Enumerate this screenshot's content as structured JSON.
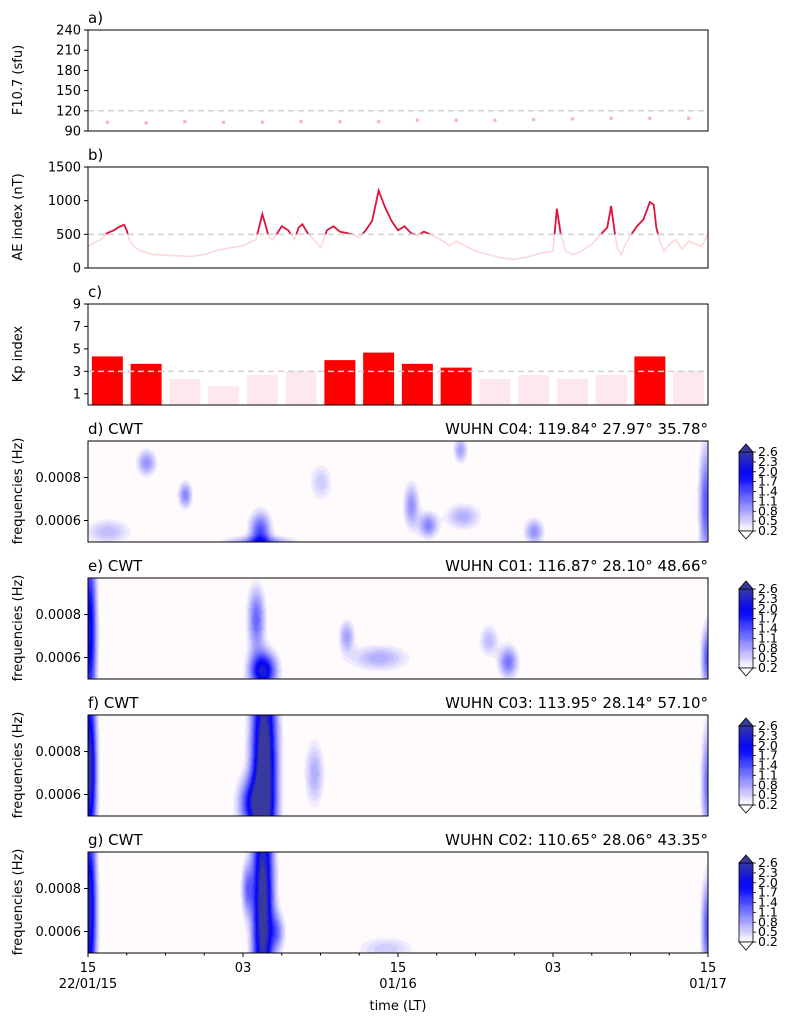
{
  "chart_data": [
    {
      "panel": "a",
      "type": "scatter",
      "title": "a)",
      "ylabel": "F10.7 (sfu)",
      "ylim": [
        90,
        240
      ],
      "yticks": [
        "90",
        "120",
        "150",
        "180",
        "210",
        "240"
      ],
      "threshold": 120,
      "colors": {
        "points": "#f7b6c8",
        "threshold": "#d0d0d0"
      },
      "x_hours": [
        1.5,
        4.5,
        7.5,
        10.5,
        13.5,
        16.5,
        19.5,
        22.5,
        25.5,
        28.5,
        31.5,
        34.5,
        37.5,
        40.5,
        43.5,
        46.5
      ],
      "values": [
        103,
        102,
        104,
        103,
        103,
        104,
        104,
        104,
        106,
        106,
        106,
        107,
        108,
        109,
        109,
        109
      ]
    },
    {
      "panel": "b",
      "type": "line",
      "title": "b)",
      "ylabel": "AE index (nT)",
      "ylim": [
        0,
        1500
      ],
      "yticks": [
        "0",
        "500",
        "1000",
        "1500"
      ],
      "threshold": 500,
      "colors": {
        "below": "#fbd9d9",
        "above": "#dc143c",
        "threshold": "#d0d0d0"
      },
      "x_hours": [
        0,
        0.5,
        1,
        1.5,
        2,
        2.5,
        2.8,
        3,
        3.2,
        3.5,
        4,
        5,
        6,
        7,
        8,
        9,
        10,
        11,
        12,
        13,
        13.5,
        13.8,
        14,
        14.3,
        14.6,
        15,
        15.5,
        16,
        16.3,
        16.6,
        17,
        17.5,
        18,
        18.5,
        19,
        19.5,
        20,
        20.5,
        21,
        21.5,
        22,
        22.5,
        23,
        23.5,
        24,
        24.5,
        25,
        25.5,
        26,
        26.5,
        27,
        27.5,
        28,
        28.5,
        29,
        29.5,
        30,
        31,
        32,
        33,
        34,
        35,
        36,
        36.3,
        36.6,
        37,
        37.5,
        38,
        39,
        39.8,
        40.2,
        40.5,
        40.8,
        41,
        41.3,
        41.6,
        42,
        42.5,
        43,
        43.5,
        43.8,
        44,
        44.3,
        44.6,
        45,
        45.5,
        46,
        46.5,
        47,
        47.5,
        48
      ],
      "values": [
        320,
        380,
        420,
        520,
        560,
        620,
        640,
        560,
        420,
        330,
        260,
        200,
        190,
        180,
        170,
        200,
        260,
        300,
        330,
        420,
        800,
        600,
        460,
        420,
        500,
        620,
        560,
        420,
        600,
        650,
        520,
        420,
        300,
        560,
        620,
        540,
        520,
        500,
        450,
        560,
        700,
        1150,
        900,
        700,
        560,
        620,
        520,
        480,
        540,
        500,
        450,
        400,
        330,
        400,
        350,
        300,
        250,
        200,
        150,
        130,
        160,
        220,
        250,
        880,
        500,
        250,
        200,
        230,
        350,
        520,
        600,
        920,
        500,
        280,
        200,
        350,
        480,
        620,
        720,
        980,
        940,
        600,
        380,
        250,
        350,
        420,
        280,
        400,
        360,
        320,
        500
      ],
      "note_values": "AE values in nT"
    },
    {
      "panel": "c",
      "type": "bar",
      "title": "c)",
      "ylabel": "Kp index",
      "ylim": [
        0,
        9
      ],
      "yticks": [
        "1",
        "3",
        "5",
        "7",
        "9"
      ],
      "threshold": 3,
      "colors": {
        "high": "#ff0000",
        "low": "#fde8ee",
        "threshold": "#d0d0d0"
      },
      "x_hours": [
        1.5,
        4.5,
        7.5,
        10.5,
        13.5,
        16.5,
        19.5,
        22.5,
        25.5,
        28.5,
        31.5,
        34.5,
        37.5,
        40.5,
        43.5,
        46.5
      ],
      "values": [
        4.33,
        3.67,
        2.33,
        1.67,
        2.67,
        3.0,
        4.0,
        4.67,
        3.67,
        3.33,
        2.33,
        2.67,
        2.33,
        2.67,
        4.33,
        3.0
      ]
    },
    {
      "panel": "d",
      "type": "heatmap",
      "title": "d) CWT",
      "station": "WUHN C04: 119.84° 27.97° 35.78°",
      "ylabel": "frequencies (Hz)",
      "yticks": [
        "0.0006",
        "0.0008"
      ],
      "ylim": [
        0.0005,
        0.00097
      ],
      "colorbar_ticks": [
        "0.2",
        "0.5",
        "0.8",
        "1.1",
        "1.4",
        "1.7",
        "2.0",
        "2.3",
        "2.6"
      ],
      "clim": [
        0.2,
        2.6
      ],
      "blobs": [
        {
          "t": 13.3,
          "f": 0.00055,
          "amp": 1.4,
          "st": 0.55,
          "sf": 6e-05
        },
        {
          "t": 13.3,
          "f": 0.0005,
          "amp": 1.0,
          "st": 1.8,
          "sf": 2e-05
        },
        {
          "t": 4.5,
          "f": 0.00087,
          "amp": 0.9,
          "st": 0.5,
          "sf": 4e-05
        },
        {
          "t": 7.5,
          "f": 0.00072,
          "amp": 1.0,
          "st": 0.35,
          "sf": 4e-05
        },
        {
          "t": 25,
          "f": 0.00067,
          "amp": 0.9,
          "st": 0.4,
          "sf": 7e-05
        },
        {
          "t": 26.3,
          "f": 0.00058,
          "amp": 1.0,
          "st": 0.5,
          "sf": 4e-05
        },
        {
          "t": 29,
          "f": 0.00062,
          "amp": 0.7,
          "st": 0.9,
          "sf": 4e-05
        },
        {
          "t": 28.8,
          "f": 0.00093,
          "amp": 0.8,
          "st": 0.35,
          "sf": 4e-05
        },
        {
          "t": 34.5,
          "f": 0.00055,
          "amp": 0.9,
          "st": 0.5,
          "sf": 4e-05
        },
        {
          "t": 1.5,
          "f": 0.00055,
          "amp": 0.6,
          "st": 1.2,
          "sf": 4e-05
        },
        {
          "t": 18,
          "f": 0.00078,
          "amp": 0.5,
          "st": 0.6,
          "sf": 6e-05
        },
        {
          "t": 47.8,
          "f": 0.00068,
          "amp": 1.3,
          "st": 0.35,
          "sf": 0.00018
        }
      ]
    },
    {
      "panel": "e",
      "type": "heatmap",
      "title": "e) CWT",
      "station": "WUHN C01: 116.87° 28.10° 48.66°",
      "ylabel": "frequencies (Hz)",
      "yticks": [
        "0.0006",
        "0.0008"
      ],
      "ylim": [
        0.0005,
        0.00097
      ],
      "colorbar_ticks": [
        "0.2",
        "0.5",
        "0.8",
        "1.1",
        "1.4",
        "1.7",
        "2.0",
        "2.3",
        "2.6"
      ],
      "clim": [
        0.2,
        2.6
      ],
      "blobs": [
        {
          "t": 0.1,
          "f": 0.00072,
          "amp": 2.1,
          "st": 0.35,
          "sf": 0.00028
        },
        {
          "t": 13.5,
          "f": 0.00054,
          "amp": 2.3,
          "st": 0.7,
          "sf": 6e-05
        },
        {
          "t": 13.0,
          "f": 0.00078,
          "amp": 1.2,
          "st": 0.45,
          "sf": 0.0001
        },
        {
          "t": 20,
          "f": 0.0007,
          "amp": 0.8,
          "st": 0.4,
          "sf": 5e-05
        },
        {
          "t": 22.5,
          "f": 0.0006,
          "amp": 0.7,
          "st": 1.5,
          "sf": 4e-05
        },
        {
          "t": 32.5,
          "f": 0.00058,
          "amp": 1.1,
          "st": 0.5,
          "sf": 5e-05
        },
        {
          "t": 31.0,
          "f": 0.00068,
          "amp": 0.6,
          "st": 0.5,
          "sf": 5e-05
        },
        {
          "t": 47.9,
          "f": 0.0006,
          "amp": 1.3,
          "st": 0.3,
          "sf": 0.0001
        }
      ]
    },
    {
      "panel": "f",
      "type": "heatmap",
      "title": "f) CWT",
      "station": "WUHN C03: 113.95° 28.14° 57.10°",
      "ylabel": "frequencies (Hz)",
      "yticks": [
        "0.0006",
        "0.0008"
      ],
      "ylim": [
        0.0005,
        0.00097
      ],
      "colorbar_ticks": [
        "0.2",
        "0.5",
        "0.8",
        "1.1",
        "1.4",
        "1.7",
        "2.0",
        "2.3",
        "2.6"
      ],
      "clim": [
        0.2,
        2.6
      ],
      "blobs": [
        {
          "t": 0.1,
          "f": 0.00072,
          "amp": 2.6,
          "st": 0.35,
          "sf": 0.00028
        },
        {
          "t": 13.6,
          "f": 0.0007,
          "amp": 3.2,
          "st": 0.65,
          "sf": 0.0004
        },
        {
          "t": 12.6,
          "f": 0.00056,
          "amp": 1.5,
          "st": 0.7,
          "sf": 8e-05
        },
        {
          "t": 17.5,
          "f": 0.0007,
          "amp": 0.7,
          "st": 0.5,
          "sf": 0.0001
        },
        {
          "t": 47.9,
          "f": 0.00065,
          "amp": 1.1,
          "st": 0.3,
          "sf": 0.00018
        }
      ]
    },
    {
      "panel": "g",
      "type": "heatmap",
      "title": "g) CWT",
      "station": "WUHN C02: 110.65° 28.06° 43.35°",
      "ylabel": "frequencies (Hz)",
      "yticks": [
        "0.0006",
        "0.0008"
      ],
      "ylim": [
        0.0005,
        0.00097
      ],
      "colorbar_ticks": [
        "0.2",
        "0.5",
        "0.8",
        "1.1",
        "1.4",
        "1.7",
        "2.0",
        "2.3",
        "2.6"
      ],
      "clim": [
        0.2,
        2.6
      ],
      "blobs": [
        {
          "t": 0.1,
          "f": 0.0007,
          "amp": 2.4,
          "st": 0.35,
          "sf": 0.0003
        },
        {
          "t": 13.5,
          "f": 0.00072,
          "amp": 2.9,
          "st": 0.55,
          "sf": 0.0004
        },
        {
          "t": 12.3,
          "f": 0.0008,
          "amp": 1.0,
          "st": 0.3,
          "sf": 8e-05
        },
        {
          "t": 14.6,
          "f": 0.0006,
          "amp": 0.9,
          "st": 0.4,
          "sf": 6e-05
        },
        {
          "t": 23,
          "f": 0.00052,
          "amp": 0.5,
          "st": 1.5,
          "sf": 4e-05
        },
        {
          "t": 47.9,
          "f": 0.00062,
          "amp": 1.3,
          "st": 0.3,
          "sf": 0.00015
        }
      ]
    }
  ],
  "xaxis": {
    "xlabel": "time (LT)",
    "xlim_hours": [
      0,
      48
    ],
    "major_ticks": [
      {
        "hours": 0,
        "line1": "15",
        "line2": "22/01/15"
      },
      {
        "hours": 12,
        "line1": "03",
        "line2": ""
      },
      {
        "hours": 24,
        "line1": "15",
        "line2": "01/16"
      },
      {
        "hours": 36,
        "line1": "03",
        "line2": ""
      },
      {
        "hours": 48,
        "line1": "15",
        "line2": "01/17"
      }
    ],
    "minor_tick_step_hours": 3
  },
  "colors": {
    "heat_low": "#fffbfd",
    "heat_mid": "#0000ff",
    "heat_high": "#3a3a9e",
    "axis": "#000000"
  }
}
